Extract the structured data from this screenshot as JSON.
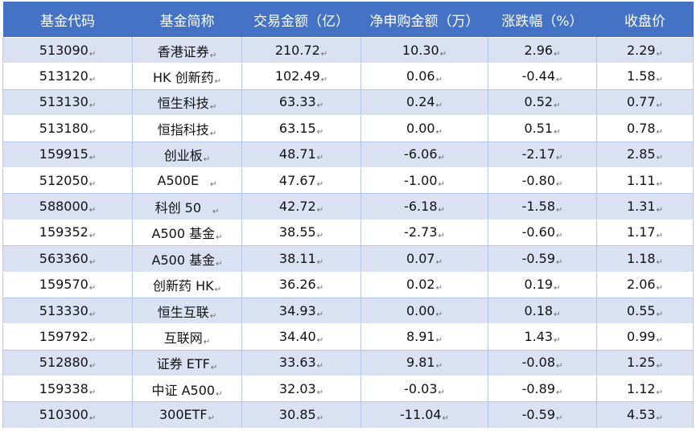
{
  "table": {
    "headers": [
      "基金代码",
      "基金简称",
      "交易金额（亿）",
      "净申购金额（万）",
      "涨跌幅（%）",
      "收盘价"
    ],
    "paragraph_mark": "↵",
    "rows": [
      {
        "code": "513090",
        "name": "香港证券",
        "amount": "210.72",
        "net": "10.30",
        "change": "2.96",
        "close": "2.29"
      },
      {
        "code": "513120",
        "name": "HK 创新药",
        "amount": "102.49",
        "net": "0.06",
        "change": "-0.44",
        "close": "1.58"
      },
      {
        "code": "513130",
        "name": "恒生科技",
        "amount": "63.33",
        "net": "0.24",
        "change": "0.52",
        "close": "0.77"
      },
      {
        "code": "513180",
        "name": "恒指科技",
        "amount": "63.15",
        "net": "0.00",
        "change": "0.51",
        "close": "0.78"
      },
      {
        "code": "159915",
        "name": "创业板",
        "amount": "48.71",
        "net": "-6.06",
        "change": "-2.17",
        "close": "2.85"
      },
      {
        "code": "512050",
        "name": "A500E",
        "amount": "47.67",
        "net": "-1.00",
        "change": "-0.80",
        "close": "1.11"
      },
      {
        "code": "588000",
        "name": "科创 50",
        "amount": "42.72",
        "net": "-6.18",
        "change": "-1.58",
        "close": "1.31"
      },
      {
        "code": "159352",
        "name": "A500 基金",
        "amount": "38.55",
        "net": "-2.73",
        "change": "-0.60",
        "close": "1.17"
      },
      {
        "code": "563360",
        "name": "A500 基金",
        "amount": "38.11",
        "net": "0.07",
        "change": "-0.59",
        "close": "1.18"
      },
      {
        "code": "159570",
        "name": "创新药 HK",
        "amount": "36.26",
        "net": "0.02",
        "change": "0.19",
        "close": "2.06"
      },
      {
        "code": "513330",
        "name": "恒生互联",
        "amount": "34.93",
        "net": "0.00",
        "change": "0.18",
        "close": "0.55"
      },
      {
        "code": "159792",
        "name": "互联网",
        "amount": "34.40",
        "net": "8.91",
        "change": "1.43",
        "close": "0.99"
      },
      {
        "code": "512880",
        "name": "证券 ETF",
        "amount": "33.63",
        "net": "9.81",
        "change": "-0.08",
        "close": "1.25"
      },
      {
        "code": "159338",
        "name": "中证 A500",
        "amount": "32.03",
        "net": "-0.03",
        "change": "-0.89",
        "close": "1.12"
      },
      {
        "code": "510300",
        "name": "300ETF",
        "amount": "30.85",
        "net": "-11.04",
        "change": "-0.59",
        "close": "4.53"
      }
    ]
  }
}
